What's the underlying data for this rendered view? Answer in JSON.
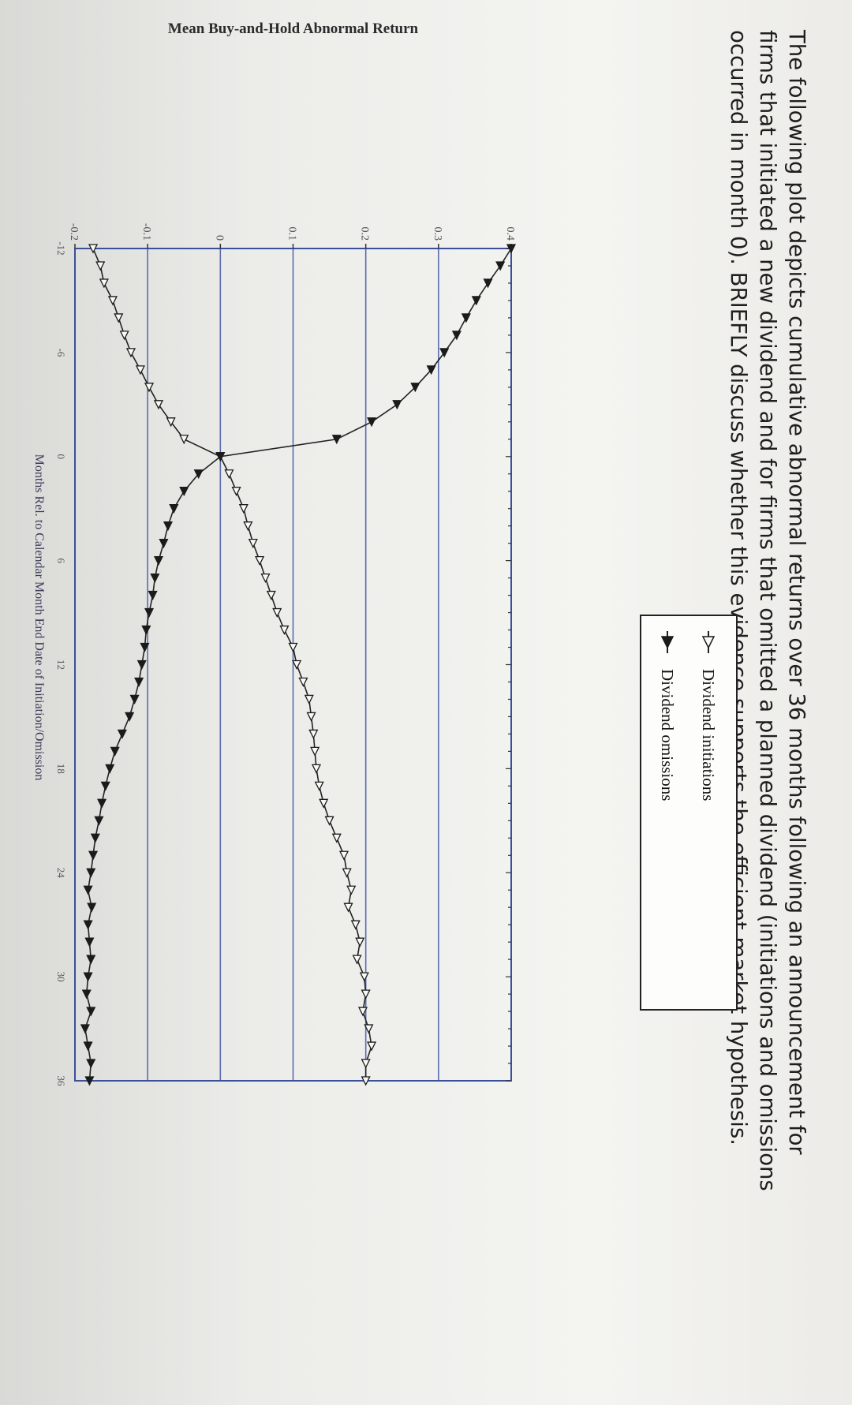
{
  "question": {
    "lines": [
      "The following plot depicts cumulative abnormal returns over 36 months following an announcement for",
      "firms that initiated a new dividend and for firms that omitted a planned dividend (initiations and omissions",
      "occurred in month 0). BRIEFLY discuss whether this evidence supports the efficient market hypothesis."
    ]
  },
  "chart_data": {
    "type": "line",
    "ylabel": "Mean Buy-and-Hold Abnormal Return",
    "xlabel": "Months Rel. to Calendar Month End Date of Initiation/Omission",
    "xlim": [
      -12,
      36
    ],
    "ylim": [
      -0.2,
      0.4
    ],
    "x_ticks": [
      "-12",
      "-6",
      "0",
      "6",
      "12",
      "18",
      "24",
      "30",
      "36"
    ],
    "y_ticks": [
      "-0.2",
      "-0.1",
      "0",
      "0.1",
      "0.2",
      "0.3",
      "0.4"
    ],
    "grid": "horizontal",
    "legend_position": "top-right",
    "x": [
      -12,
      -11,
      -10,
      -9,
      -8,
      -7,
      -6,
      -5,
      -4,
      -3,
      -2,
      -1,
      0,
      1,
      2,
      3,
      4,
      5,
      6,
      7,
      8,
      9,
      10,
      11,
      12,
      13,
      14,
      15,
      16,
      17,
      18,
      19,
      20,
      21,
      22,
      23,
      24,
      25,
      26,
      27,
      28,
      29,
      30,
      31,
      32,
      33,
      34,
      35,
      36
    ],
    "series": [
      {
        "name": "Dividend initiations",
        "marker": "open-triangle",
        "values": [
          -0.175,
          -0.165,
          -0.16,
          -0.148,
          -0.14,
          -0.132,
          -0.123,
          -0.11,
          -0.098,
          -0.085,
          -0.068,
          -0.05,
          0.0,
          0.012,
          0.022,
          0.032,
          0.038,
          0.045,
          0.054,
          0.062,
          0.07,
          0.078,
          0.088,
          0.1,
          0.105,
          0.114,
          0.122,
          0.125,
          0.128,
          0.13,
          0.132,
          0.136,
          0.142,
          0.15,
          0.16,
          0.17,
          0.174,
          0.18,
          0.176,
          0.186,
          0.192,
          0.188,
          0.198,
          0.2,
          0.196,
          0.204,
          0.208,
          0.2,
          0.2
        ]
      },
      {
        "name": "Dividend omissions",
        "marker": "filled-triangle",
        "values": [
          0.4,
          0.385,
          0.368,
          0.352,
          0.338,
          0.325,
          0.308,
          0.29,
          0.268,
          0.243,
          0.208,
          0.16,
          0.0,
          -0.03,
          -0.05,
          -0.064,
          -0.072,
          -0.078,
          -0.085,
          -0.09,
          -0.093,
          -0.098,
          -0.102,
          -0.104,
          -0.108,
          -0.112,
          -0.118,
          -0.125,
          -0.135,
          -0.145,
          -0.152,
          -0.158,
          -0.163,
          -0.167,
          -0.172,
          -0.175,
          -0.178,
          -0.182,
          -0.177,
          -0.182,
          -0.18,
          -0.178,
          -0.182,
          -0.184,
          -0.178,
          -0.186,
          -0.182,
          -0.178,
          -0.18
        ]
      }
    ]
  }
}
